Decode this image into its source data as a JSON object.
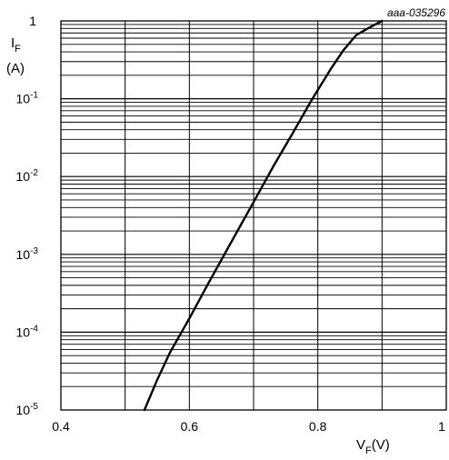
{
  "chart_data": {
    "type": "line",
    "figure_id": "aaa-035296",
    "x_axis": {
      "symbol": "V",
      "subscript": "F",
      "unit": "(V)",
      "range": [
        0.4,
        1.0
      ],
      "ticks": [
        {
          "value": 0.4,
          "label": "0.4"
        },
        {
          "value": 0.6,
          "label": "0.6"
        },
        {
          "value": 0.8,
          "label": "0.8"
        },
        {
          "value": 1.0,
          "label": "1"
        }
      ],
      "grid_step": 0.1
    },
    "y_axis": {
      "symbol": "I",
      "subscript": "F",
      "unit": "(A)",
      "scale": "log",
      "range": [
        1e-05,
        1
      ],
      "ticks": [
        {
          "value": 1,
          "label": "1"
        },
        {
          "value": 0.1,
          "base": "10",
          "exp": "-1"
        },
        {
          "value": 0.01,
          "base": "10",
          "exp": "-2"
        },
        {
          "value": 0.001,
          "base": "10",
          "exp": "-3"
        },
        {
          "value": 0.0001,
          "base": "10",
          "exp": "-4"
        },
        {
          "value": 1e-05,
          "base": "10",
          "exp": "-5"
        }
      ]
    },
    "grid": true,
    "series": [
      {
        "x": [
          0.53,
          0.55,
          0.57,
          0.6,
          0.63,
          0.66,
          0.7,
          0.73,
          0.76,
          0.79,
          0.82,
          0.84,
          0.86,
          0.88,
          0.9
        ],
        "y": [
          1e-05,
          2.45e-05,
          5.5e-05,
          0.00015,
          0.00043,
          0.0012,
          0.0047,
          0.0132,
          0.035,
          0.095,
          0.24,
          0.42,
          0.66,
          0.82,
          1.0
        ]
      }
    ]
  }
}
